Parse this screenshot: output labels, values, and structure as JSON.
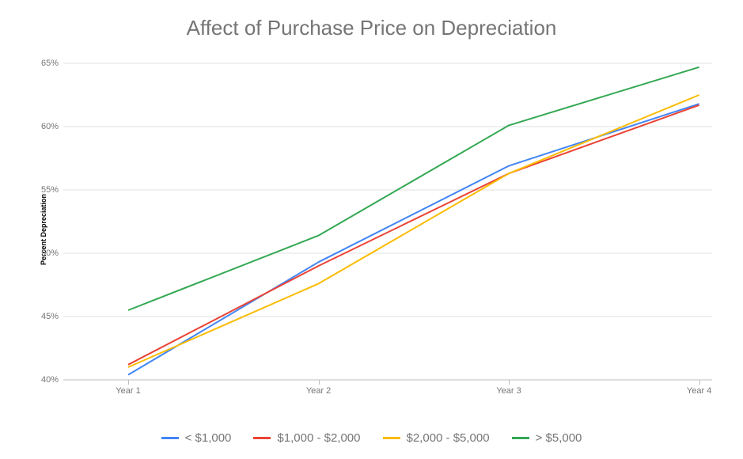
{
  "chart": {
    "type": "line",
    "title": "Affect of Purchase Price on Depreciation",
    "title_fontsize": 26,
    "title_color": "#757575",
    "y_label": "Percent Depreciation",
    "y_label_fontsize": 9,
    "background_color": "#ffffff",
    "gridline_color": "#e0e0e0",
    "axis_line_color": "#bdbdbd",
    "tick_label_color": "#757575",
    "tick_fontsize": 11,
    "legend_fontsize": 15,
    "legend_color": "#757575",
    "line_width": 2,
    "xlim": [
      0,
      3
    ],
    "ylim": [
      40,
      65
    ],
    "y_ticks": [
      40,
      45,
      50,
      55,
      60,
      65
    ],
    "y_tick_labels": [
      "40%",
      "45%",
      "50%",
      "55%",
      "60%",
      "65%"
    ],
    "x_categories": [
      "Year 1",
      "Year 2",
      "Year 3",
      "Year 4"
    ],
    "series": [
      {
        "name": "< $1,000",
        "color": "#4285f4",
        "values": [
          40.4,
          49.3,
          56.9,
          61.8
        ]
      },
      {
        "name": "$1,000 - $2,000",
        "color": "#ea4335",
        "values": [
          41.2,
          49.0,
          56.3,
          61.7
        ]
      },
      {
        "name": "$2,000 - $5,000",
        "color": "#fbbc04",
        "values": [
          41.0,
          47.6,
          56.3,
          62.5
        ]
      },
      {
        "name": "> $5,000",
        "color": "#34a853",
        "values": [
          45.5,
          51.4,
          60.1,
          64.7
        ]
      }
    ]
  }
}
